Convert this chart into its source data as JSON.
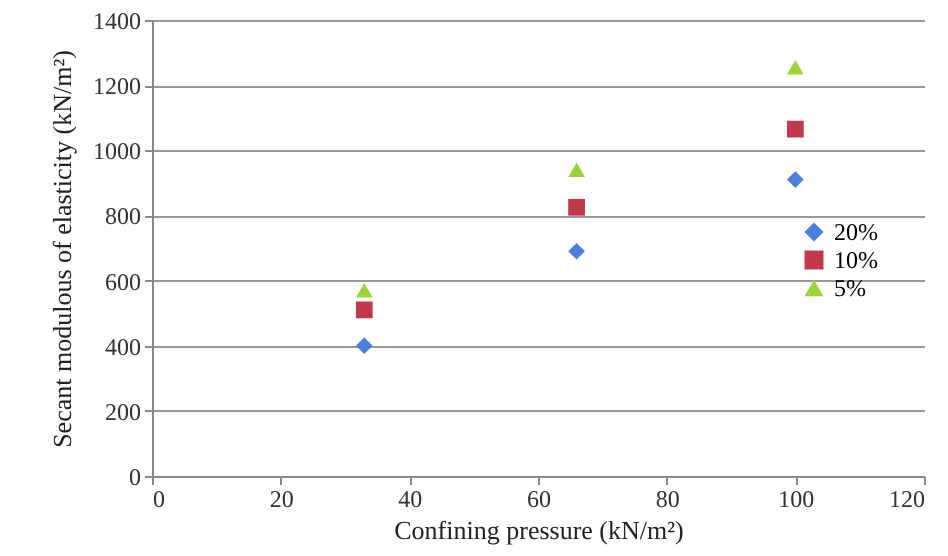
{
  "chart_data": {
    "type": "scatter",
    "xlabel": "Confining pressure (kN/m²)",
    "ylabel": "Secant modulous of elasticity (kN/m²)",
    "x": [
      33,
      66,
      100
    ],
    "series": [
      {
        "name": "20%",
        "color": "#4a7fdc",
        "marker": "diamond",
        "values": [
          400,
          690,
          910
        ]
      },
      {
        "name": "10%",
        "color": "#c0394b",
        "marker": "square",
        "values": [
          510,
          825,
          1065
        ]
      },
      {
        "name": "5%",
        "color": "#9bd43a",
        "marker": "triangle",
        "values": [
          570,
          940,
          1255
        ]
      }
    ],
    "xlim": [
      0,
      120
    ],
    "xticks": [
      0,
      20,
      40,
      60,
      80,
      100,
      120
    ],
    "ylim": [
      0,
      1400
    ],
    "yticks": [
      0,
      200,
      400,
      600,
      800,
      1000,
      1200,
      1400
    ],
    "grid": "y",
    "legend": "right"
  }
}
